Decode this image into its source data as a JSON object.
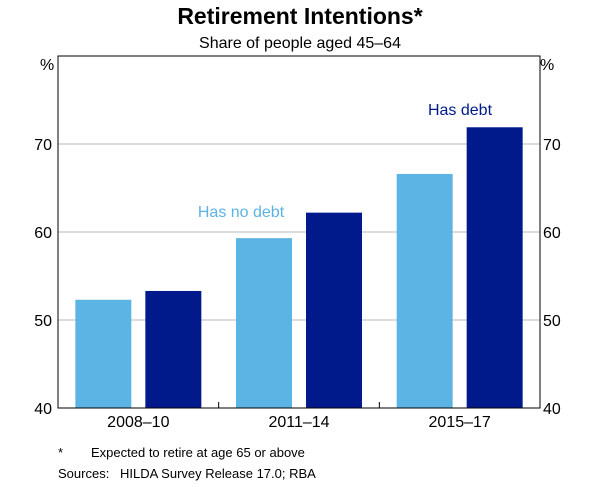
{
  "chart_data": {
    "type": "bar",
    "title": "Retirement Intentions*",
    "subtitle": "Share of people aged 45–64",
    "y_unit_left": "%",
    "y_unit_right": "%",
    "ylim": [
      40,
      80
    ],
    "yticks": [
      40,
      50,
      60,
      70
    ],
    "grid": true,
    "categories": [
      "2008–10",
      "2011–14",
      "2015–17"
    ],
    "series": [
      {
        "name": "Has no debt",
        "color": "#5cb4e4",
        "values": [
          52.3,
          59.3,
          66.6
        ]
      },
      {
        "name": "Has debt",
        "color": "#001a8c",
        "values": [
          53.3,
          62.2,
          71.9
        ]
      }
    ]
  },
  "footnote": {
    "marker": "*",
    "text": "Expected to retire at age 65 or above"
  },
  "source": {
    "label": "Sources:",
    "text": "HILDA Survey Release 17.0; RBA"
  }
}
